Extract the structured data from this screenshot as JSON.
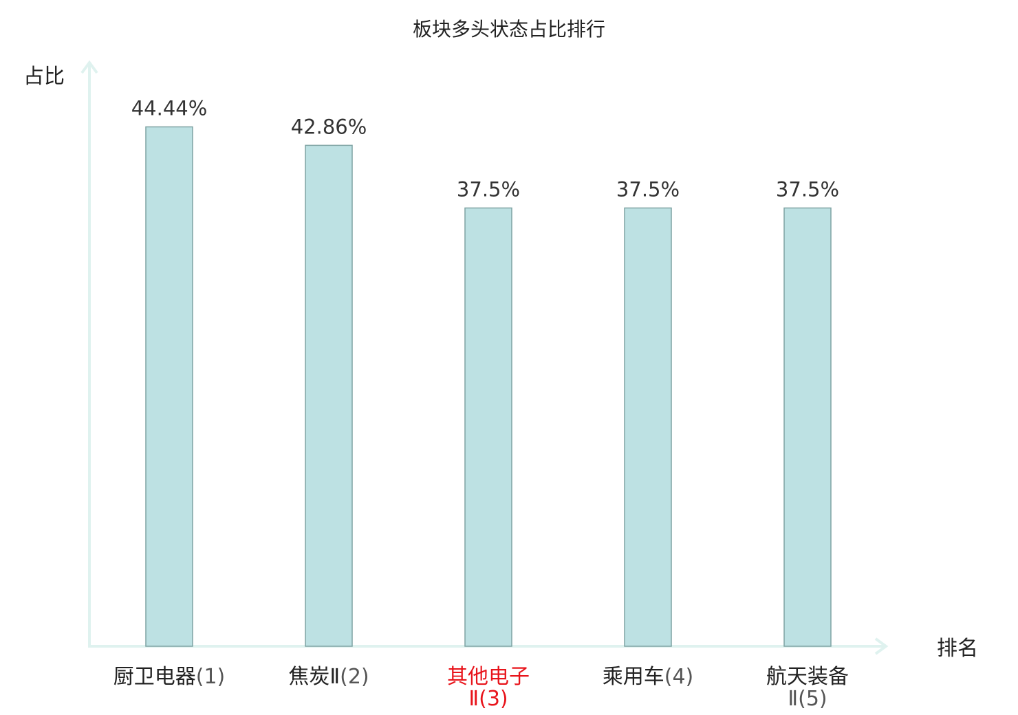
{
  "chart_data": {
    "type": "bar",
    "title": "板块多头状态占比排行",
    "ylabel": "占比",
    "xlabel": "排名",
    "ylim": [
      0,
      50
    ],
    "grid": false,
    "categories": [
      {
        "name": "厨卫电器",
        "rank": "(1)",
        "highlight": false
      },
      {
        "name": "焦炭Ⅱ",
        "rank": "(2)",
        "highlight": false
      },
      {
        "name": "其他电子",
        "rank": "Ⅱ(3)",
        "highlight": true
      },
      {
        "name": "乘用车",
        "rank": "(4)",
        "highlight": false
      },
      {
        "name": "航天装备",
        "rank": "Ⅱ(5)",
        "highlight": false
      }
    ],
    "values": [
      44.44,
      42.86,
      37.5,
      37.5,
      37.5
    ],
    "value_labels": [
      "44.44%",
      "42.86%",
      "37.5%",
      "37.5%",
      "37.5%"
    ],
    "colors": {
      "bar_fill": "#bde1e3",
      "bar_stroke": "#7fa3a3",
      "axis": "#dff2ef",
      "text": "#222222",
      "label_text": "#333333",
      "rank_text": "#555555",
      "highlight": "#e8141b"
    }
  }
}
